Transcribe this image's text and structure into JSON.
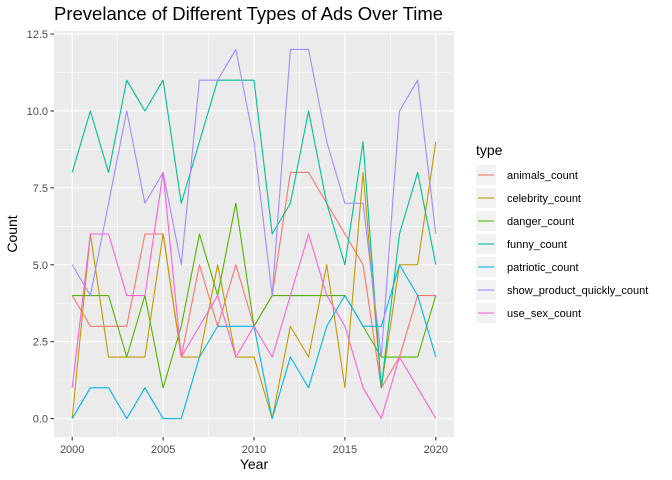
{
  "chart_data": {
    "type": "line",
    "title": "Prevelance of Different Types of Ads Over Time",
    "xlabel": "Year",
    "ylabel": "Count",
    "xlim": [
      1999,
      2021
    ],
    "ylim": [
      -0.6,
      12.6
    ],
    "x_ticks": [
      2000,
      2005,
      2010,
      2015,
      2020
    ],
    "x_tick_labels": [
      "2000",
      "2005",
      "2010",
      "2015",
      "2020"
    ],
    "y_ticks": [
      0,
      2.5,
      5,
      7.5,
      10,
      12.5
    ],
    "y_tick_labels": [
      "0.0",
      "2.5",
      "5.0",
      "7.5",
      "10.0",
      "12.5"
    ],
    "grid": true,
    "legend_title": "type",
    "legend_position": "right",
    "x": [
      2000,
      2001,
      2002,
      2003,
      2004,
      2005,
      2006,
      2007,
      2008,
      2009,
      2010,
      2011,
      2012,
      2013,
      2014,
      2015,
      2016,
      2017,
      2018,
      2019,
      2020
    ],
    "series": [
      {
        "name": "animals_count",
        "color": "#F8766D",
        "values": [
          4,
          3,
          3,
          3,
          6,
          6,
          2,
          5,
          3,
          5,
          3,
          4,
          8,
          8,
          7,
          6,
          5,
          1,
          2,
          4,
          4
        ]
      },
      {
        "name": "celebrity_count",
        "color": "#C49A00",
        "values": [
          0,
          6,
          2,
          2,
          2,
          6,
          2,
          2,
          5,
          2,
          2,
          0,
          3,
          2,
          5,
          1,
          8,
          1,
          5,
          5,
          9
        ]
      },
      {
        "name": "danger_count",
        "color": "#53B400",
        "values": [
          4,
          4,
          4,
          2,
          4,
          1,
          3,
          6,
          4,
          7,
          3,
          4,
          4,
          4,
          4,
          4,
          3,
          2,
          2,
          2,
          4
        ]
      },
      {
        "name": "funny_count",
        "color": "#00C094",
        "values": [
          8,
          10,
          8,
          11,
          10,
          11,
          7,
          9,
          11,
          11,
          11,
          6,
          7,
          10,
          7,
          5,
          9,
          1,
          6,
          8,
          5
        ]
      },
      {
        "name": "patriotic_count",
        "color": "#00B6EB",
        "values": [
          0,
          1,
          1,
          0,
          1,
          0,
          0,
          2,
          3,
          3,
          3,
          0,
          2,
          1,
          3,
          4,
          3,
          3,
          5,
          4,
          2
        ]
      },
      {
        "name": "show_product_quickly_count",
        "color": "#A58AFF",
        "values": [
          5,
          4,
          7,
          10,
          7,
          8,
          5,
          11,
          11,
          12,
          9,
          4,
          12,
          12,
          9,
          7,
          7,
          2,
          10,
          11,
          6
        ]
      },
      {
        "name": "use_sex_count",
        "color": "#FB61D7",
        "values": [
          1,
          6,
          6,
          4,
          4,
          8,
          2,
          3,
          4,
          2,
          3,
          2,
          4,
          6,
          4,
          3,
          1,
          0,
          2,
          1,
          0
        ]
      }
    ]
  }
}
